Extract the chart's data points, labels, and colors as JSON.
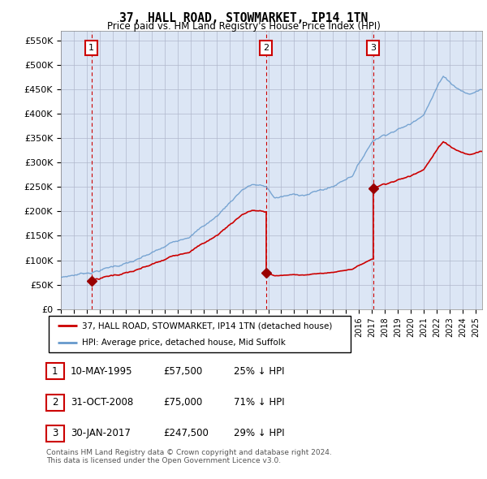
{
  "title": "37, HALL ROAD, STOWMARKET, IP14 1TN",
  "subtitle": "Price paid vs. HM Land Registry's House Price Index (HPI)",
  "ylabel_ticks": [
    "£0",
    "£50K",
    "£100K",
    "£150K",
    "£200K",
    "£250K",
    "£300K",
    "£350K",
    "£400K",
    "£450K",
    "£500K",
    "£550K"
  ],
  "ylim": [
    0,
    570000
  ],
  "xlim_start": 1993,
  "xlim_end": 2025.5,
  "sale_dates": [
    1995.36,
    2008.83,
    2017.08
  ],
  "sale_prices": [
    57500,
    75000,
    247500
  ],
  "sale_labels": [
    "1",
    "2",
    "3"
  ],
  "legend_sale_label": "37, HALL ROAD, STOWMARKET, IP14 1TN (detached house)",
  "legend_hpi_label": "HPI: Average price, detached house, Mid Suffolk",
  "table_rows": [
    [
      "1",
      "10-MAY-1995",
      "£57,500",
      "25% ↓ HPI"
    ],
    [
      "2",
      "31-OCT-2008",
      "£75,000",
      "71% ↓ HPI"
    ],
    [
      "3",
      "30-JAN-2017",
      "£247,500",
      "29% ↓ HPI"
    ]
  ],
  "footer": "Contains HM Land Registry data © Crown copyright and database right 2024.\nThis data is licensed under the Open Government Licence v3.0.",
  "sale_line_color": "#cc0000",
  "hpi_line_color": "#6699cc",
  "background_color": "#dce6f5",
  "grid_color": "#b0b8cc",
  "vline_color": "#cc0000",
  "box_color": "#cc0000",
  "marker_color": "#990000"
}
